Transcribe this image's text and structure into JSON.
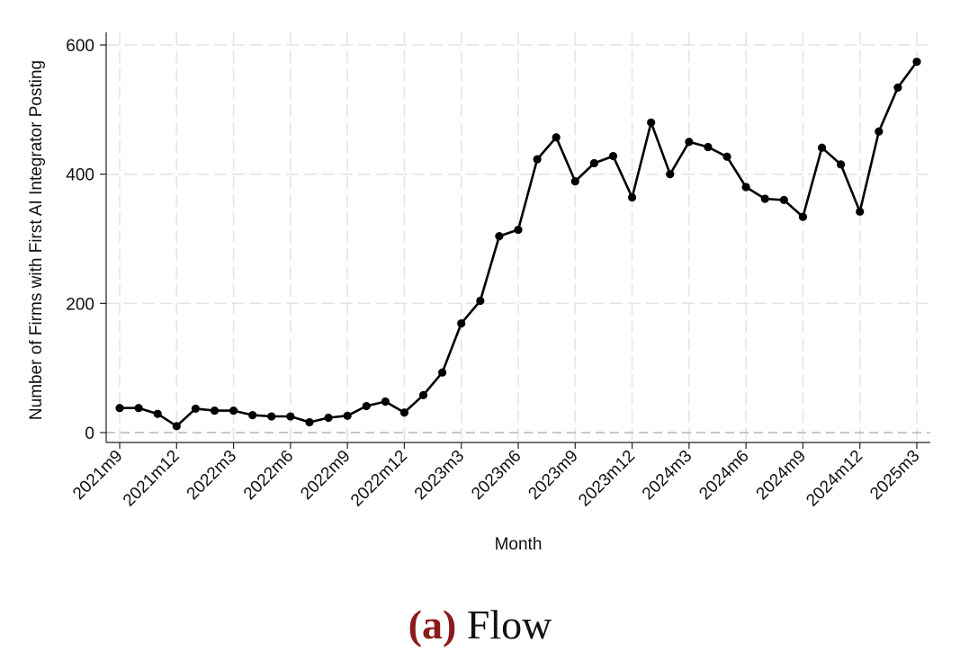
{
  "chart_data": {
    "type": "line",
    "xlabel": "Month",
    "ylabel": "Number of Firms with First AI Integrator Posting",
    "ylim": [
      0,
      600
    ],
    "yticks": [
      0,
      200,
      400,
      600
    ],
    "grid": true,
    "reference_line_y": 0,
    "x_tick_labels": [
      "2021m9",
      "2021m12",
      "2022m3",
      "2022m6",
      "2022m9",
      "2022m12",
      "2023m3",
      "2023m6",
      "2023m9",
      "2023m12",
      "2024m3",
      "2024m6",
      "2024m9",
      "2024m12",
      "2025m3"
    ],
    "x": [
      "2021m9",
      "2021m10",
      "2021m11",
      "2021m12",
      "2022m1",
      "2022m2",
      "2022m3",
      "2022m4",
      "2022m5",
      "2022m6",
      "2022m7",
      "2022m8",
      "2022m9",
      "2022m10",
      "2022m11",
      "2022m12",
      "2023m1",
      "2023m2",
      "2023m3",
      "2023m4",
      "2023m5",
      "2023m6",
      "2023m7",
      "2023m8",
      "2023m9",
      "2023m10",
      "2023m11",
      "2023m12",
      "2024m1",
      "2024m2",
      "2024m3",
      "2024m4",
      "2024m5",
      "2024m6",
      "2024m7",
      "2024m8",
      "2024m9",
      "2024m10",
      "2024m11",
      "2024m12",
      "2025m1",
      "2025m2",
      "2025m3"
    ],
    "series": [
      {
        "values": [
          38,
          38,
          29,
          10,
          37,
          34,
          34,
          27,
          25,
          25,
          16,
          23,
          26,
          41,
          48,
          31,
          58,
          93,
          169,
          204,
          304,
          314,
          423,
          457,
          389,
          417,
          428,
          364,
          480,
          400,
          450,
          442,
          427,
          380,
          362,
          360,
          334,
          441,
          415,
          342,
          466,
          534,
          574
        ]
      }
    ]
  },
  "caption": {
    "label": "(a)",
    "text": "Flow"
  }
}
